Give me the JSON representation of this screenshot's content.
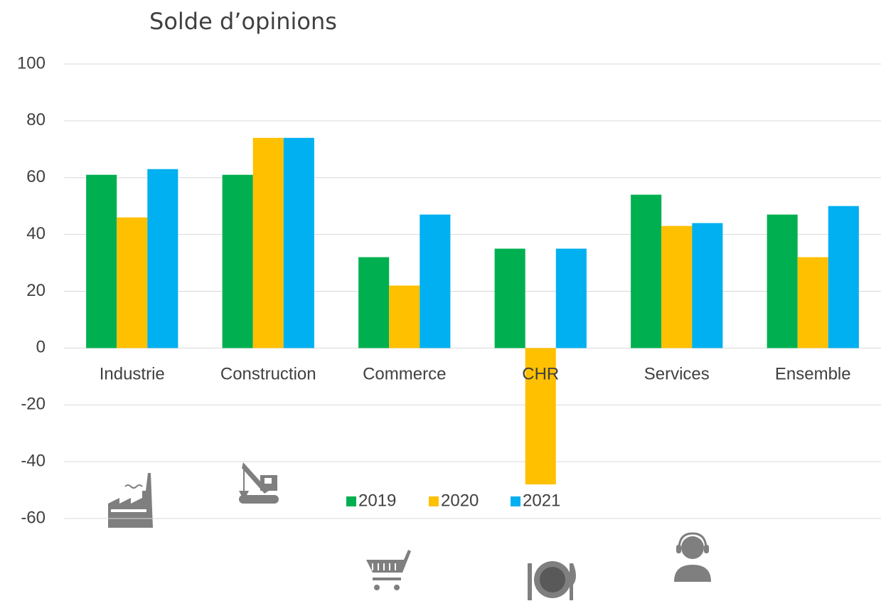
{
  "chart_data": {
    "type": "bar",
    "title": "Solde d’opinions",
    "categories": [
      "Industrie",
      "Construction",
      "Commerce",
      "CHR",
      "Services",
      "Ensemble"
    ],
    "series": [
      {
        "name": "2019",
        "color": "#00b050",
        "values": [
          61,
          61,
          32,
          35,
          54,
          47
        ]
      },
      {
        "name": "2020",
        "color": "#ffc000",
        "values": [
          46,
          74,
          22,
          -48,
          43,
          32
        ]
      },
      {
        "name": "2021",
        "color": "#00b0f0",
        "values": [
          63,
          74,
          47,
          35,
          44,
          50
        ]
      }
    ],
    "ylim": [
      -60,
      100
    ],
    "yticks": [
      -60,
      -40,
      -20,
      0,
      20,
      40,
      60,
      80,
      100
    ],
    "grid": true,
    "legend": "bottom"
  }
}
